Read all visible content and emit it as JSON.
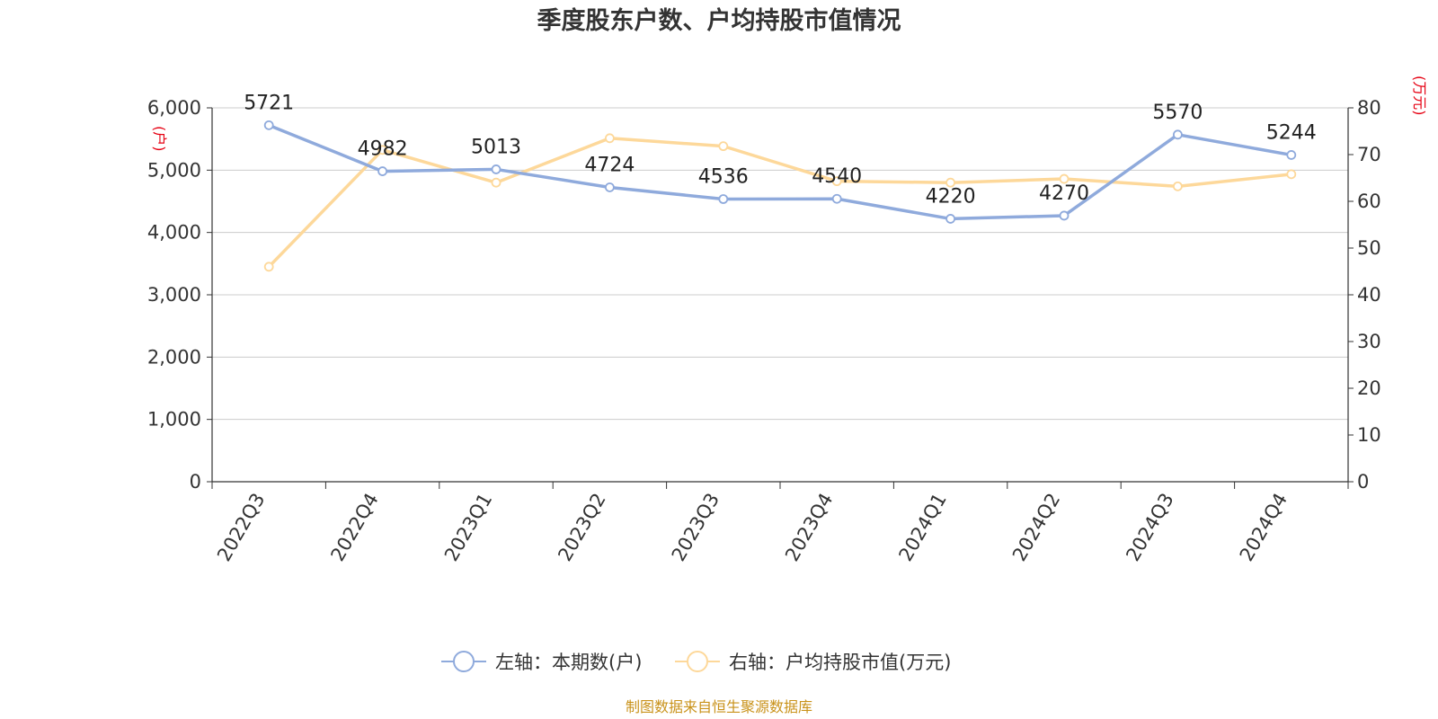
{
  "title": "季度股东户数、户均持股市值情况",
  "source": "制图数据来自恒生聚源数据库",
  "colors": {
    "series1": "#8faadc",
    "series2": "#fdd89a",
    "grid": "#cccccc",
    "axis": "#333333",
    "unit": "#e60012",
    "source": "#c9921a"
  },
  "chart_data": {
    "type": "line",
    "title": "季度股东户数、户均持股市值情况",
    "categories": [
      "2022Q3",
      "2022Q4",
      "2023Q1",
      "2023Q2",
      "2023Q3",
      "2023Q4",
      "2024Q1",
      "2024Q2",
      "2024Q3",
      "2024Q4"
    ],
    "left_axis": {
      "unit": "(户)",
      "ylim": [
        0,
        6000
      ],
      "ticks": [
        "0",
        "1,000",
        "2,000",
        "3,000",
        "4,000",
        "5,000",
        "6,000"
      ]
    },
    "right_axis": {
      "unit": "(万元)",
      "ylim": [
        0,
        80
      ],
      "ticks": [
        "0",
        "10",
        "20",
        "30",
        "40",
        "50",
        "60",
        "70",
        "80"
      ]
    },
    "grid": true,
    "legend_position": "bottom-center",
    "series": [
      {
        "name": "左轴：本期数(户)",
        "axis": "left",
        "values": [
          5721,
          4982,
          5013,
          4724,
          4536,
          4540,
          4220,
          4270,
          5570,
          5244
        ],
        "labels": [
          "5721",
          "4982",
          "5013",
          "4724",
          "4536",
          "4540",
          "4220",
          "4270",
          "5570",
          "5244"
        ]
      },
      {
        "name": "右轴：户均持股市值(万元)",
        "axis": "right",
        "values": [
          46,
          71,
          64,
          73.5,
          71.8,
          64.3,
          64,
          64.8,
          63.2,
          65.8
        ]
      }
    ]
  }
}
